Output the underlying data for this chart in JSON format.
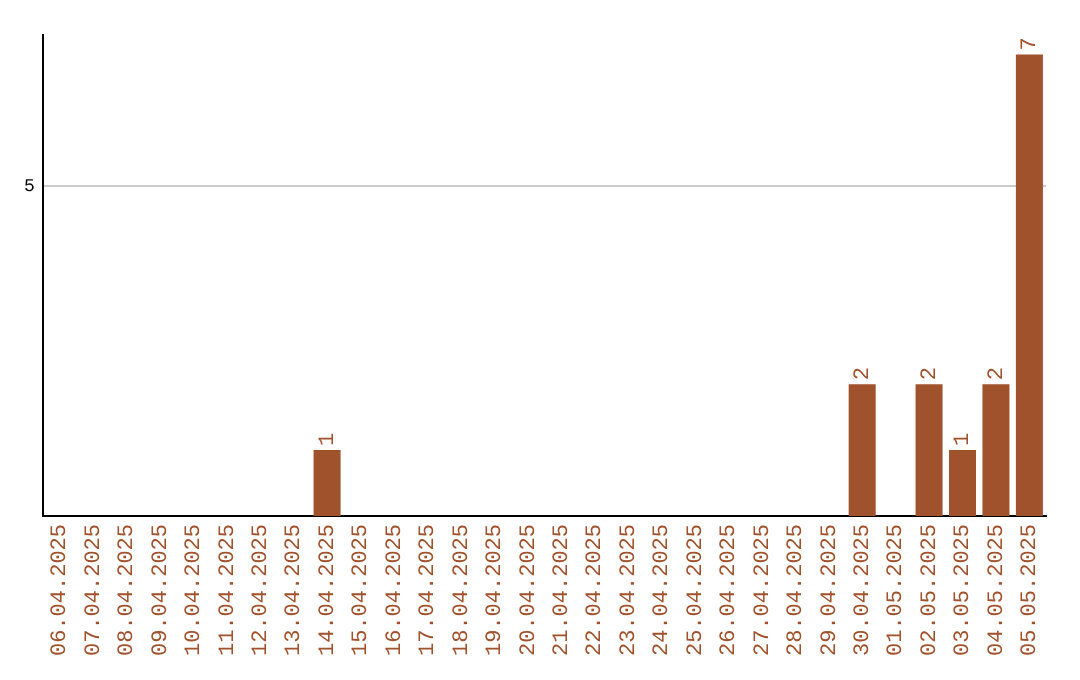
{
  "chart_data": {
    "type": "bar",
    "categories": [
      "06.04.2025",
      "07.04.2025",
      "08.04.2025",
      "09.04.2025",
      "10.04.2025",
      "11.04.2025",
      "12.04.2025",
      "13.04.2025",
      "14.04.2025",
      "15.04.2025",
      "16.04.2025",
      "17.04.2025",
      "18.04.2025",
      "19.04.2025",
      "20.04.2025",
      "21.04.2025",
      "22.04.2025",
      "23.04.2025",
      "24.04.2025",
      "25.04.2025",
      "26.04.2025",
      "27.04.2025",
      "28.04.2025",
      "29.04.2025",
      "30.04.2025",
      "01.05.2025",
      "02.05.2025",
      "03.05.2025",
      "04.05.2025",
      "05.05.2025"
    ],
    "values": [
      0,
      0,
      0,
      0,
      0,
      0,
      0,
      0,
      1,
      0,
      0,
      0,
      0,
      0,
      0,
      0,
      0,
      0,
      0,
      0,
      0,
      0,
      0,
      0,
      2,
      0,
      2,
      1,
      2,
      7
    ],
    "value_labels": [
      null,
      null,
      null,
      null,
      null,
      null,
      null,
      null,
      "1",
      null,
      null,
      null,
      null,
      null,
      null,
      null,
      null,
      null,
      null,
      null,
      null,
      null,
      null,
      null,
      "2",
      null,
      "2",
      "1",
      "2",
      "7"
    ],
    "color": "#a0522d",
    "ylim": [
      0,
      7.3
    ],
    "yticks": [
      5
    ],
    "grid": "y",
    "legend": false
  }
}
